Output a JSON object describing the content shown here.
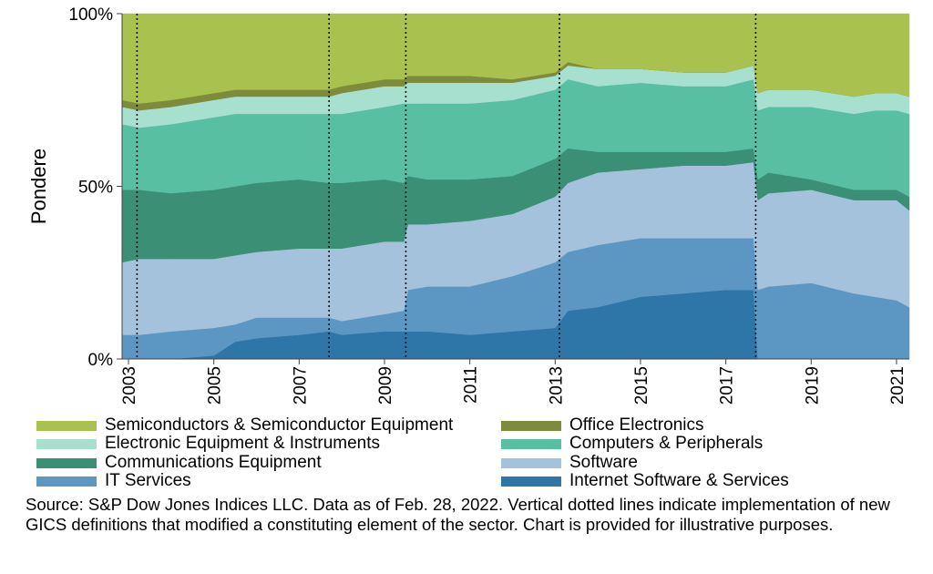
{
  "chart_data": {
    "type": "area",
    "stacked": true,
    "ylabel": "Pondere",
    "xlabel": "",
    "ylim": [
      0,
      100
    ],
    "xlim": [
      2002.85,
      2021.3
    ],
    "y_ticks": [
      "0%",
      "50%",
      "100%"
    ],
    "y_tick_values": [
      0,
      50,
      100
    ],
    "x_ticks": [
      "2003",
      "2005",
      "2007",
      "2009",
      "2011",
      "2013",
      "2015",
      "2017",
      "2019",
      "2021"
    ],
    "x_tick_values": [
      2003,
      2005,
      2007,
      2009,
      2011,
      2013,
      2015,
      2017,
      2019,
      2021
    ],
    "vertical_dotted_lines": [
      2003.2,
      2007.7,
      2009.5,
      2013.1,
      2017.7
    ],
    "x": [
      2002.85,
      2003.25,
      2004.0,
      2005.0,
      2005.5,
      2006.0,
      2007.0,
      2007.7,
      2008.0,
      2009.0,
      2009.45,
      2009.55,
      2010.0,
      2011.0,
      2012.0,
      2013.0,
      2013.3,
      2014.0,
      2015.0,
      2016.0,
      2017.0,
      2017.65,
      2017.75,
      2018.0,
      2019.0,
      2020.0,
      2020.5,
      2021.0,
      2021.3
    ],
    "series": [
      {
        "name": "Internet Software & Services",
        "color": "#2e75a8",
        "values": [
          0,
          0,
          0,
          1,
          5,
          6,
          7,
          8,
          7,
          8,
          8,
          8,
          8,
          7,
          8,
          9,
          14,
          15,
          18,
          19,
          20,
          20,
          0,
          0,
          0,
          0,
          0,
          0,
          0
        ]
      },
      {
        "name": "IT Services",
        "color": "#5c97c4",
        "values": [
          7,
          7,
          8,
          8,
          5,
          6,
          5,
          4,
          4,
          5,
          6,
          12,
          13,
          14,
          16,
          19,
          17,
          18,
          17,
          16,
          15,
          15,
          20,
          21,
          22,
          19,
          18,
          17,
          15
        ]
      },
      {
        "name": "Software",
        "color": "#a5c2dd",
        "values": [
          21,
          22,
          21,
          20,
          20,
          19,
          20,
          20,
          21,
          21,
          20,
          19,
          18,
          19,
          18,
          19,
          20,
          21,
          20,
          21,
          21,
          22,
          26,
          27,
          27,
          27,
          28,
          29,
          28
        ]
      },
      {
        "name": "Communications Equipment",
        "color": "#3b8f75",
        "values": [
          21,
          20,
          19,
          20,
          20,
          20,
          20,
          19,
          19,
          18,
          17,
          14,
          13,
          12,
          11,
          11,
          10,
          6,
          5,
          4,
          4,
          4,
          6,
          6,
          3,
          3,
          3,
          3,
          4
        ]
      },
      {
        "name": "Computers & Peripherals",
        "color": "#58bfa3",
        "values": [
          19,
          18,
          20,
          21,
          21,
          20,
          19,
          20,
          20,
          21,
          23,
          21,
          22,
          22,
          22,
          20,
          20,
          19,
          20,
          19,
          19,
          20,
          20,
          19,
          21,
          22,
          23,
          23,
          24
        ]
      },
      {
        "name": "Electronic Equipment & Instruments",
        "color": "#a8e0d0",
        "values": [
          5,
          5,
          5,
          5,
          5,
          5,
          5,
          5,
          6,
          6,
          5,
          6,
          6,
          6,
          5,
          4,
          4,
          5,
          4,
          4,
          4,
          4,
          5,
          5,
          5,
          5,
          5,
          5,
          5
        ]
      },
      {
        "name": "Office Electronics",
        "color": "#7f8b3c",
        "values": [
          2,
          2,
          2,
          2,
          2,
          2,
          2,
          2,
          2,
          2,
          2,
          2,
          2,
          2,
          1,
          1,
          1,
          0,
          0,
          0,
          0,
          0,
          0,
          0,
          0,
          0,
          0,
          0,
          0
        ]
      },
      {
        "name": "Semiconductors & Semiconductor Equipment",
        "color": "#a9c14f",
        "values": [
          25,
          26,
          25,
          23,
          22,
          22,
          22,
          22,
          21,
          19,
          19,
          18,
          18,
          18,
          19,
          17,
          14,
          16,
          16,
          17,
          17,
          15,
          23,
          22,
          22,
          24,
          23,
          23,
          24
        ]
      }
    ]
  },
  "legend": [
    {
      "label": "Semiconductors & Semiconductor Equipment",
      "color": "#a9c14f"
    },
    {
      "label": "Office Electronics",
      "color": "#7f8b3c"
    },
    {
      "label": "Electronic Equipment & Instruments",
      "color": "#a8e0d0"
    },
    {
      "label": "Computers & Peripherals",
      "color": "#58bfa3"
    },
    {
      "label": "Communications Equipment",
      "color": "#3b8f75"
    },
    {
      "label": "Software",
      "color": "#a5c2dd"
    },
    {
      "label": "IT Services",
      "color": "#5c97c4"
    },
    {
      "label": "Internet Software & Services",
      "color": "#2e75a8"
    }
  ],
  "source_note": "Source: S&P Dow Jones Indices LLC.  Data as of Feb. 28, 2022.  Vertical dotted lines indicate implementation of new GICS definitions that modified a constituting element of the sector.  Chart is provided for illustrative purposes."
}
